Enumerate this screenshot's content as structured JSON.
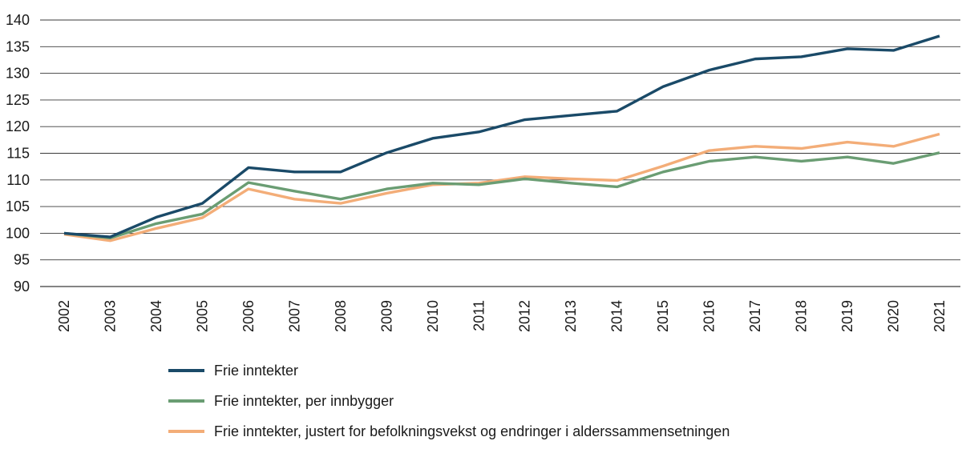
{
  "chart_data": {
    "type": "line",
    "title": "",
    "xlabel": "",
    "ylabel": "",
    "x": [
      "2002",
      "2003",
      "2004",
      "2005",
      "2006",
      "2007",
      "2008",
      "2009",
      "2010",
      "2011",
      "2012",
      "2013",
      "2014",
      "2015",
      "2016",
      "2017",
      "2018",
      "2019",
      "2020",
      "2021"
    ],
    "ylim": [
      90,
      140
    ],
    "yticks": [
      90,
      95,
      100,
      105,
      110,
      115,
      120,
      125,
      130,
      135,
      140
    ],
    "grid": "horizontal",
    "legend_position": "bottom",
    "series": [
      {
        "name": "Frie inntekter",
        "color": "#1a4a68",
        "values": [
          100,
          99.3,
          103,
          105.6,
          112.3,
          111.5,
          111.5,
          115.1,
          117.8,
          119.0,
          121.3,
          122.1,
          122.9,
          127.5,
          130.6,
          132.7,
          133.1,
          134.6,
          134.3,
          137.0
        ]
      },
      {
        "name": "Frie inntekter, per innbygger",
        "color": "#6a9d73",
        "values": [
          100,
          99.1,
          101.8,
          103.6,
          109.5,
          107.9,
          106.4,
          108.3,
          109.4,
          109.1,
          110.2,
          109.4,
          108.7,
          111.5,
          113.5,
          114.3,
          113.5,
          114.3,
          113.1,
          115.1
        ]
      },
      {
        "name": "Frie inntekter, justert for befolkningsvekst og endringer i alderssammensetningen",
        "color": "#f3ad78",
        "values": [
          99.8,
          98.6,
          100.9,
          102.9,
          108.3,
          106.4,
          105.6,
          107.5,
          109.1,
          109.4,
          110.6,
          110.2,
          109.9,
          112.6,
          115.5,
          116.3,
          115.9,
          117.1,
          116.3,
          118.6
        ]
      }
    ]
  }
}
